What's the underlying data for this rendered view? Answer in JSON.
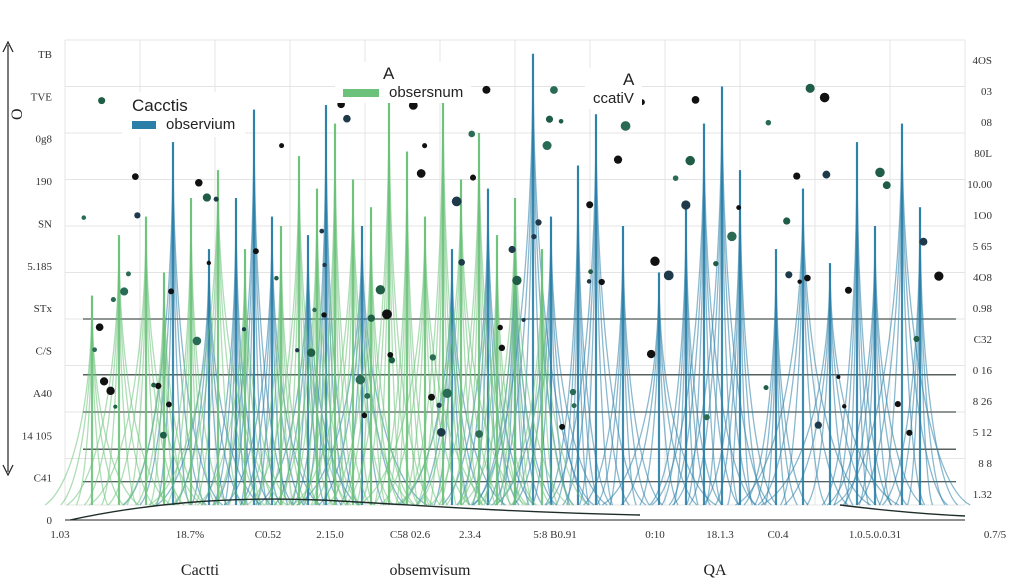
{
  "chart_data": {
    "type": "line",
    "title": "",
    "xlabel": "",
    "ylabel": "O",
    "ylim": [
      0,
      1
    ],
    "grid": true,
    "legend_placement": "top-left",
    "left_ticks": [
      "TB",
      "TVE",
      "0g8",
      "190",
      "SN",
      "5.185",
      "STx",
      "C/S",
      "A40",
      "14 105",
      "C41",
      "0"
    ],
    "right_ticks": [
      "4OS",
      "03",
      "08",
      "80L",
      "10.00",
      "1O0",
      "5 65",
      "4O8",
      "0.98",
      "C32",
      "0 16",
      "8 26",
      "5 12",
      "8 8",
      "1.32"
    ],
    "x_ticks": [
      "1.03",
      "18.7%",
      "C0.52",
      "2.15.0",
      "C58 02.6",
      "2.3.4",
      "5:8 B0.91",
      "0:10",
      "18.1.3",
      "C0.4",
      "1.0.5.0.0.31",
      "0.7/5"
    ],
    "bottom_labels": [
      "Cactti",
      "obsemvisum",
      "QA"
    ],
    "legends": [
      {
        "title": "Cacctis",
        "entries": [
          {
            "label": "observium",
            "color": "#2a7fa8"
          }
        ]
      },
      {
        "title": "A",
        "entries": [
          {
            "label": "obsersnum",
            "color": "#6cc27a"
          }
        ]
      },
      {
        "title": "A",
        "entries": [
          {
            "label": "ccatiV",
            "color": "#2a7fa8"
          }
        ]
      }
    ],
    "series": [
      {
        "name": "observium",
        "color": "#2a7fa8",
        "x": [
          0.12,
          0.16,
          0.19,
          0.21,
          0.23,
          0.27,
          0.29,
          0.33,
          0.43,
          0.47,
          0.5,
          0.52,
          0.54,
          0.57,
          0.59,
          0.62,
          0.66,
          0.69,
          0.71,
          0.73,
          0.75,
          0.79,
          0.82,
          0.85,
          0.88,
          0.9,
          0.93,
          0.95
        ],
        "y": [
          0.78,
          0.55,
          0.66,
          0.85,
          0.62,
          0.58,
          0.86,
          0.6,
          0.55,
          0.68,
          0.6,
          0.97,
          0.62,
          0.73,
          0.84,
          0.6,
          0.5,
          0.65,
          0.82,
          0.9,
          0.72,
          0.55,
          0.68,
          0.52,
          0.78,
          0.6,
          0.82,
          0.64
        ]
      },
      {
        "name": "obsersnum",
        "color": "#6cc27a",
        "x": [
          0.03,
          0.06,
          0.09,
          0.11,
          0.14,
          0.17,
          0.2,
          0.24,
          0.26,
          0.28,
          0.3,
          0.32,
          0.34,
          0.36,
          0.38,
          0.4,
          0.42,
          0.44,
          0.46,
          0.48,
          0.5,
          0.53
        ],
        "y": [
          0.45,
          0.58,
          0.62,
          0.5,
          0.66,
          0.72,
          0.55,
          0.6,
          0.75,
          0.68,
          0.82,
          0.7,
          0.64,
          0.88,
          0.76,
          0.62,
          0.92,
          0.7,
          0.8,
          0.58,
          0.66,
          0.55
        ]
      }
    ],
    "hlines": [
      0.6,
      0.72,
      0.8,
      0.88,
      0.95
    ],
    "colors": {
      "blue": "#2a7fa8",
      "green": "#6cc27a",
      "dark": "#1f2d2a"
    }
  }
}
